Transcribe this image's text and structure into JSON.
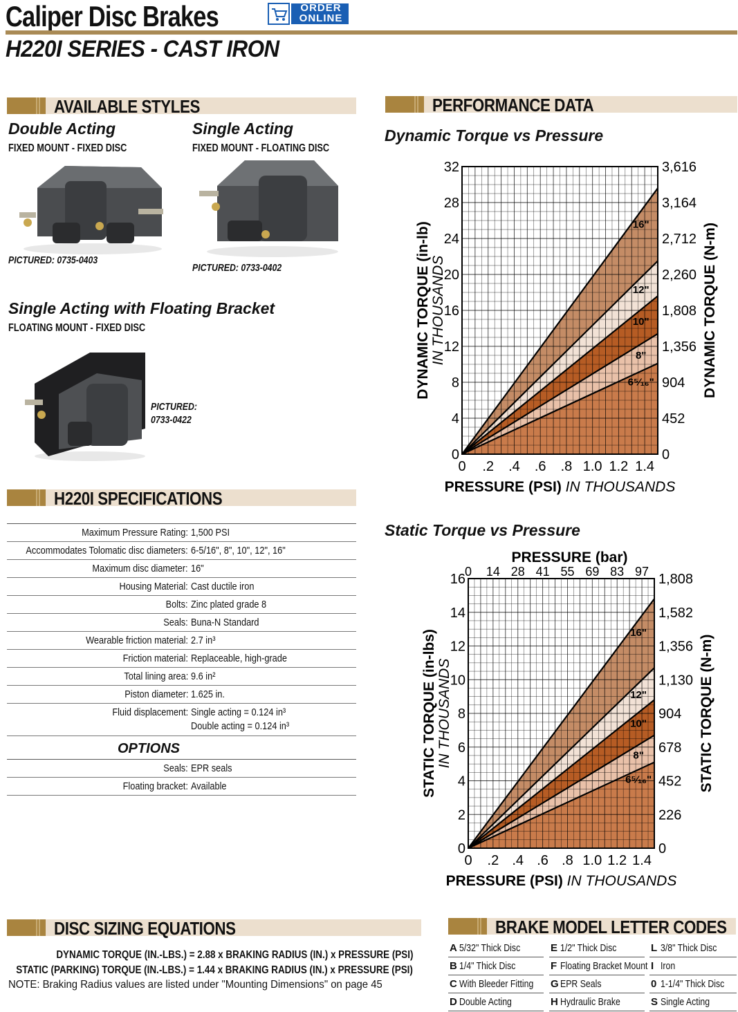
{
  "header": {
    "title": "Caliper Disc Brakes",
    "order_badge_line1": "ORDER",
    "order_badge_line2": "ONLINE",
    "series": "H220I SERIES - CAST IRON"
  },
  "available_styles": {
    "heading": "AVAILABLE STYLES",
    "styles": [
      {
        "name": "Double Acting",
        "mount": "FIXED MOUNT - FIXED DISC",
        "pictured": "PICTURED:  0735-0403"
      },
      {
        "name": "Single Acting",
        "mount": "FIXED MOUNT - FLOATING DISC",
        "pictured": "PICTURED: 0733-0402"
      },
      {
        "name": "Single Acting with Floating Bracket",
        "mount": "FLOATING MOUNT - FIXED DISC",
        "pictured_line1": "PICTURED:",
        "pictured_line2": "0733-0422"
      }
    ]
  },
  "specifications": {
    "heading": "H220I SPECIFICATIONS",
    "rows": [
      {
        "label": "Maximum Pressure Rating:",
        "value": "1,500 PSI"
      },
      {
        "label": "Accommodates Tolomatic disc diameters:",
        "value": "6-5/16\",  8\",  10\", 12\", 16\""
      },
      {
        "label": "Maximum disc diameter:",
        "value": "16\""
      },
      {
        "label": "Housing Material:",
        "value": "Cast ductile iron"
      },
      {
        "label": "Bolts:",
        "value": "Zinc plated grade 8"
      },
      {
        "label": "Seals:",
        "value": "Buna-N Standard"
      },
      {
        "label": "Wearable friction material:",
        "value": "2.7 in³"
      },
      {
        "label": "Friction material:",
        "value": "Replaceable, high-grade"
      },
      {
        "label": "Total lining area:",
        "value": "9.6 in²"
      },
      {
        "label": "Piston diameter:",
        "value": "1.625 in."
      }
    ],
    "fluid": {
      "label": "Fluid displacement:",
      "value1": "Single acting = 0.124 in³",
      "value2": "Double acting = 0.124 in³"
    },
    "options_heading": "OPTIONS",
    "options": [
      {
        "label": "Seals:",
        "value": "EPR seals"
      },
      {
        "label": "Floating bracket:",
        "value": "Available"
      }
    ]
  },
  "performance": {
    "heading": "PERFORMANCE DATA"
  },
  "chart_data": [
    {
      "type": "area",
      "title": "Dynamic Torque vs Pressure",
      "xlabel": "PRESSURE (PSI)",
      "xlabel_suffix": "IN THOUSANDS",
      "ylabel": "DYNAMIC TORQUE (in-lb)",
      "ylabel_suffix": "IN THOUSANDS",
      "y2label": "DYNAMIC TORQUE (N-m)",
      "xlim": [
        0,
        1.5
      ],
      "ylim": [
        0,
        32
      ],
      "x_ticks": [
        "0",
        ".2",
        ".4",
        ".6",
        ".8",
        "1.0",
        "1.2",
        "1.4"
      ],
      "x_tick_values": [
        0,
        0.2,
        0.4,
        0.6,
        0.8,
        1.0,
        1.2,
        1.4
      ],
      "y_ticks": [
        "0",
        "4",
        "8",
        "12",
        "16",
        "20",
        "24",
        "28",
        "32"
      ],
      "y_tick_values": [
        0,
        4,
        8,
        12,
        16,
        20,
        24,
        28,
        32
      ],
      "y2_ticks": [
        "0",
        "452",
        "904",
        "1,356",
        "1,808",
        "2,260",
        "2,712",
        "3,164",
        "3,616"
      ],
      "grid": true,
      "series": [
        {
          "name": "6⁵⁄₁₆\"",
          "x": [
            0,
            1.5
          ],
          "y": [
            0,
            10.1
          ],
          "color": "#c97b4b"
        },
        {
          "name": "8\"",
          "x": [
            0,
            1.5
          ],
          "y": [
            0,
            13.4
          ],
          "color": "#e9c1a9"
        },
        {
          "name": "10\"",
          "x": [
            0,
            1.5
          ],
          "y": [
            0,
            17.6
          ],
          "color": "#b65c24"
        },
        {
          "name": "12\"",
          "x": [
            0,
            1.5
          ],
          "y": [
            0,
            21.5
          ],
          "color": "#f2e2d6"
        },
        {
          "name": "16\"",
          "x": [
            0,
            1.5
          ],
          "y": [
            0,
            29.6
          ],
          "color": "#c48c66"
        }
      ]
    },
    {
      "type": "area",
      "title": "Static Torque vs Pressure",
      "xlabel": "PRESSURE (PSI)",
      "xlabel_suffix": "IN THOUSANDS",
      "x2label": "PRESSURE (bar)",
      "ylabel": "STATIC TORQUE  (in-lbs)",
      "ylabel_suffix": "IN THOUSANDS",
      "y2label": "STATIC TORQUE  (N-m)",
      "xlim": [
        0,
        1.5
      ],
      "ylim": [
        0,
        16
      ],
      "x_ticks": [
        "0",
        ".2",
        ".4",
        ".6",
        ".8",
        "1.0",
        "1.2",
        "1.4"
      ],
      "x_tick_values": [
        0,
        0.2,
        0.4,
        0.6,
        0.8,
        1.0,
        1.2,
        1.4
      ],
      "x2_ticks": [
        "0",
        "14",
        "28",
        "41",
        "55",
        "69",
        "83",
        "97"
      ],
      "y_ticks": [
        "0",
        "2",
        "4",
        "6",
        "8",
        "10",
        "12",
        "14",
        "16"
      ],
      "y_tick_values": [
        0,
        2,
        4,
        6,
        8,
        10,
        12,
        14,
        16
      ],
      "y2_ticks": [
        "0",
        "226",
        "452",
        "678",
        "904",
        "1,130",
        "1,356",
        "1,582",
        "1,808"
      ],
      "grid": true,
      "series": [
        {
          "name": "6⁵⁄₁₆\"",
          "x": [
            0,
            1.5
          ],
          "y": [
            0,
            5.1
          ],
          "color": "#c97b4b"
        },
        {
          "name": "8\"",
          "x": [
            0,
            1.5
          ],
          "y": [
            0,
            6.7
          ],
          "color": "#e9c1a9"
        },
        {
          "name": "10\"",
          "x": [
            0,
            1.5
          ],
          "y": [
            0,
            8.8
          ],
          "color": "#b65c24"
        },
        {
          "name": "12\"",
          "x": [
            0,
            1.5
          ],
          "y": [
            0,
            10.7
          ],
          "color": "#f2e2d6"
        },
        {
          "name": "16\"",
          "x": [
            0,
            1.5
          ],
          "y": [
            0,
            14.8
          ],
          "color": "#c48c66"
        }
      ]
    }
  ],
  "disc_sizing": {
    "heading": "DISC SIZING EQUATIONS",
    "dynamic": "DYNAMIC TORQUE (IN.-LBS.) =  2.88 x BRAKING RADIUS (IN.) x PRESSURE (PSI)",
    "static": "STATIC (PARKING) TORQUE (IN.-LBS.) =  1.44 x BRAKING RADIUS (IN.) x PRESSURE (PSI)",
    "note": "NOTE: Braking Radius values are listed under \"Mounting Dimensions\" on page 45"
  },
  "letter_codes": {
    "heading": "BRAKE MODEL LETTER CODES",
    "columns": [
      [
        {
          "letter": "A",
          "desc": "5/32\" Thick Disc"
        },
        {
          "letter": "B",
          "desc": "1/4\" Thick Disc"
        },
        {
          "letter": "C",
          "desc": "With Bleeder Fitting"
        },
        {
          "letter": "D",
          "desc": "Double Acting"
        }
      ],
      [
        {
          "letter": "E",
          "desc": "1/2\" Thick Disc"
        },
        {
          "letter": "F",
          "desc": "Floating Bracket Mount"
        },
        {
          "letter": "G",
          "desc": "EPR Seals"
        },
        {
          "letter": "H",
          "desc": "Hydraulic Brake"
        }
      ],
      [
        {
          "letter": "L",
          "desc": "3/8\" Thick Disc"
        },
        {
          "letter": "I",
          "desc": "Iron"
        },
        {
          "letter": "0",
          "desc": "1-1/4\" Thick Disc"
        },
        {
          "letter": "S",
          "desc": "Single Acting"
        }
      ]
    ]
  },
  "colors": {
    "accent": "#a9843f",
    "section_bg": "#ecdfce",
    "title_rule": "#a98a55",
    "order_blue": "#1a5fb4"
  },
  "icons": {
    "order": "cart-icon"
  }
}
